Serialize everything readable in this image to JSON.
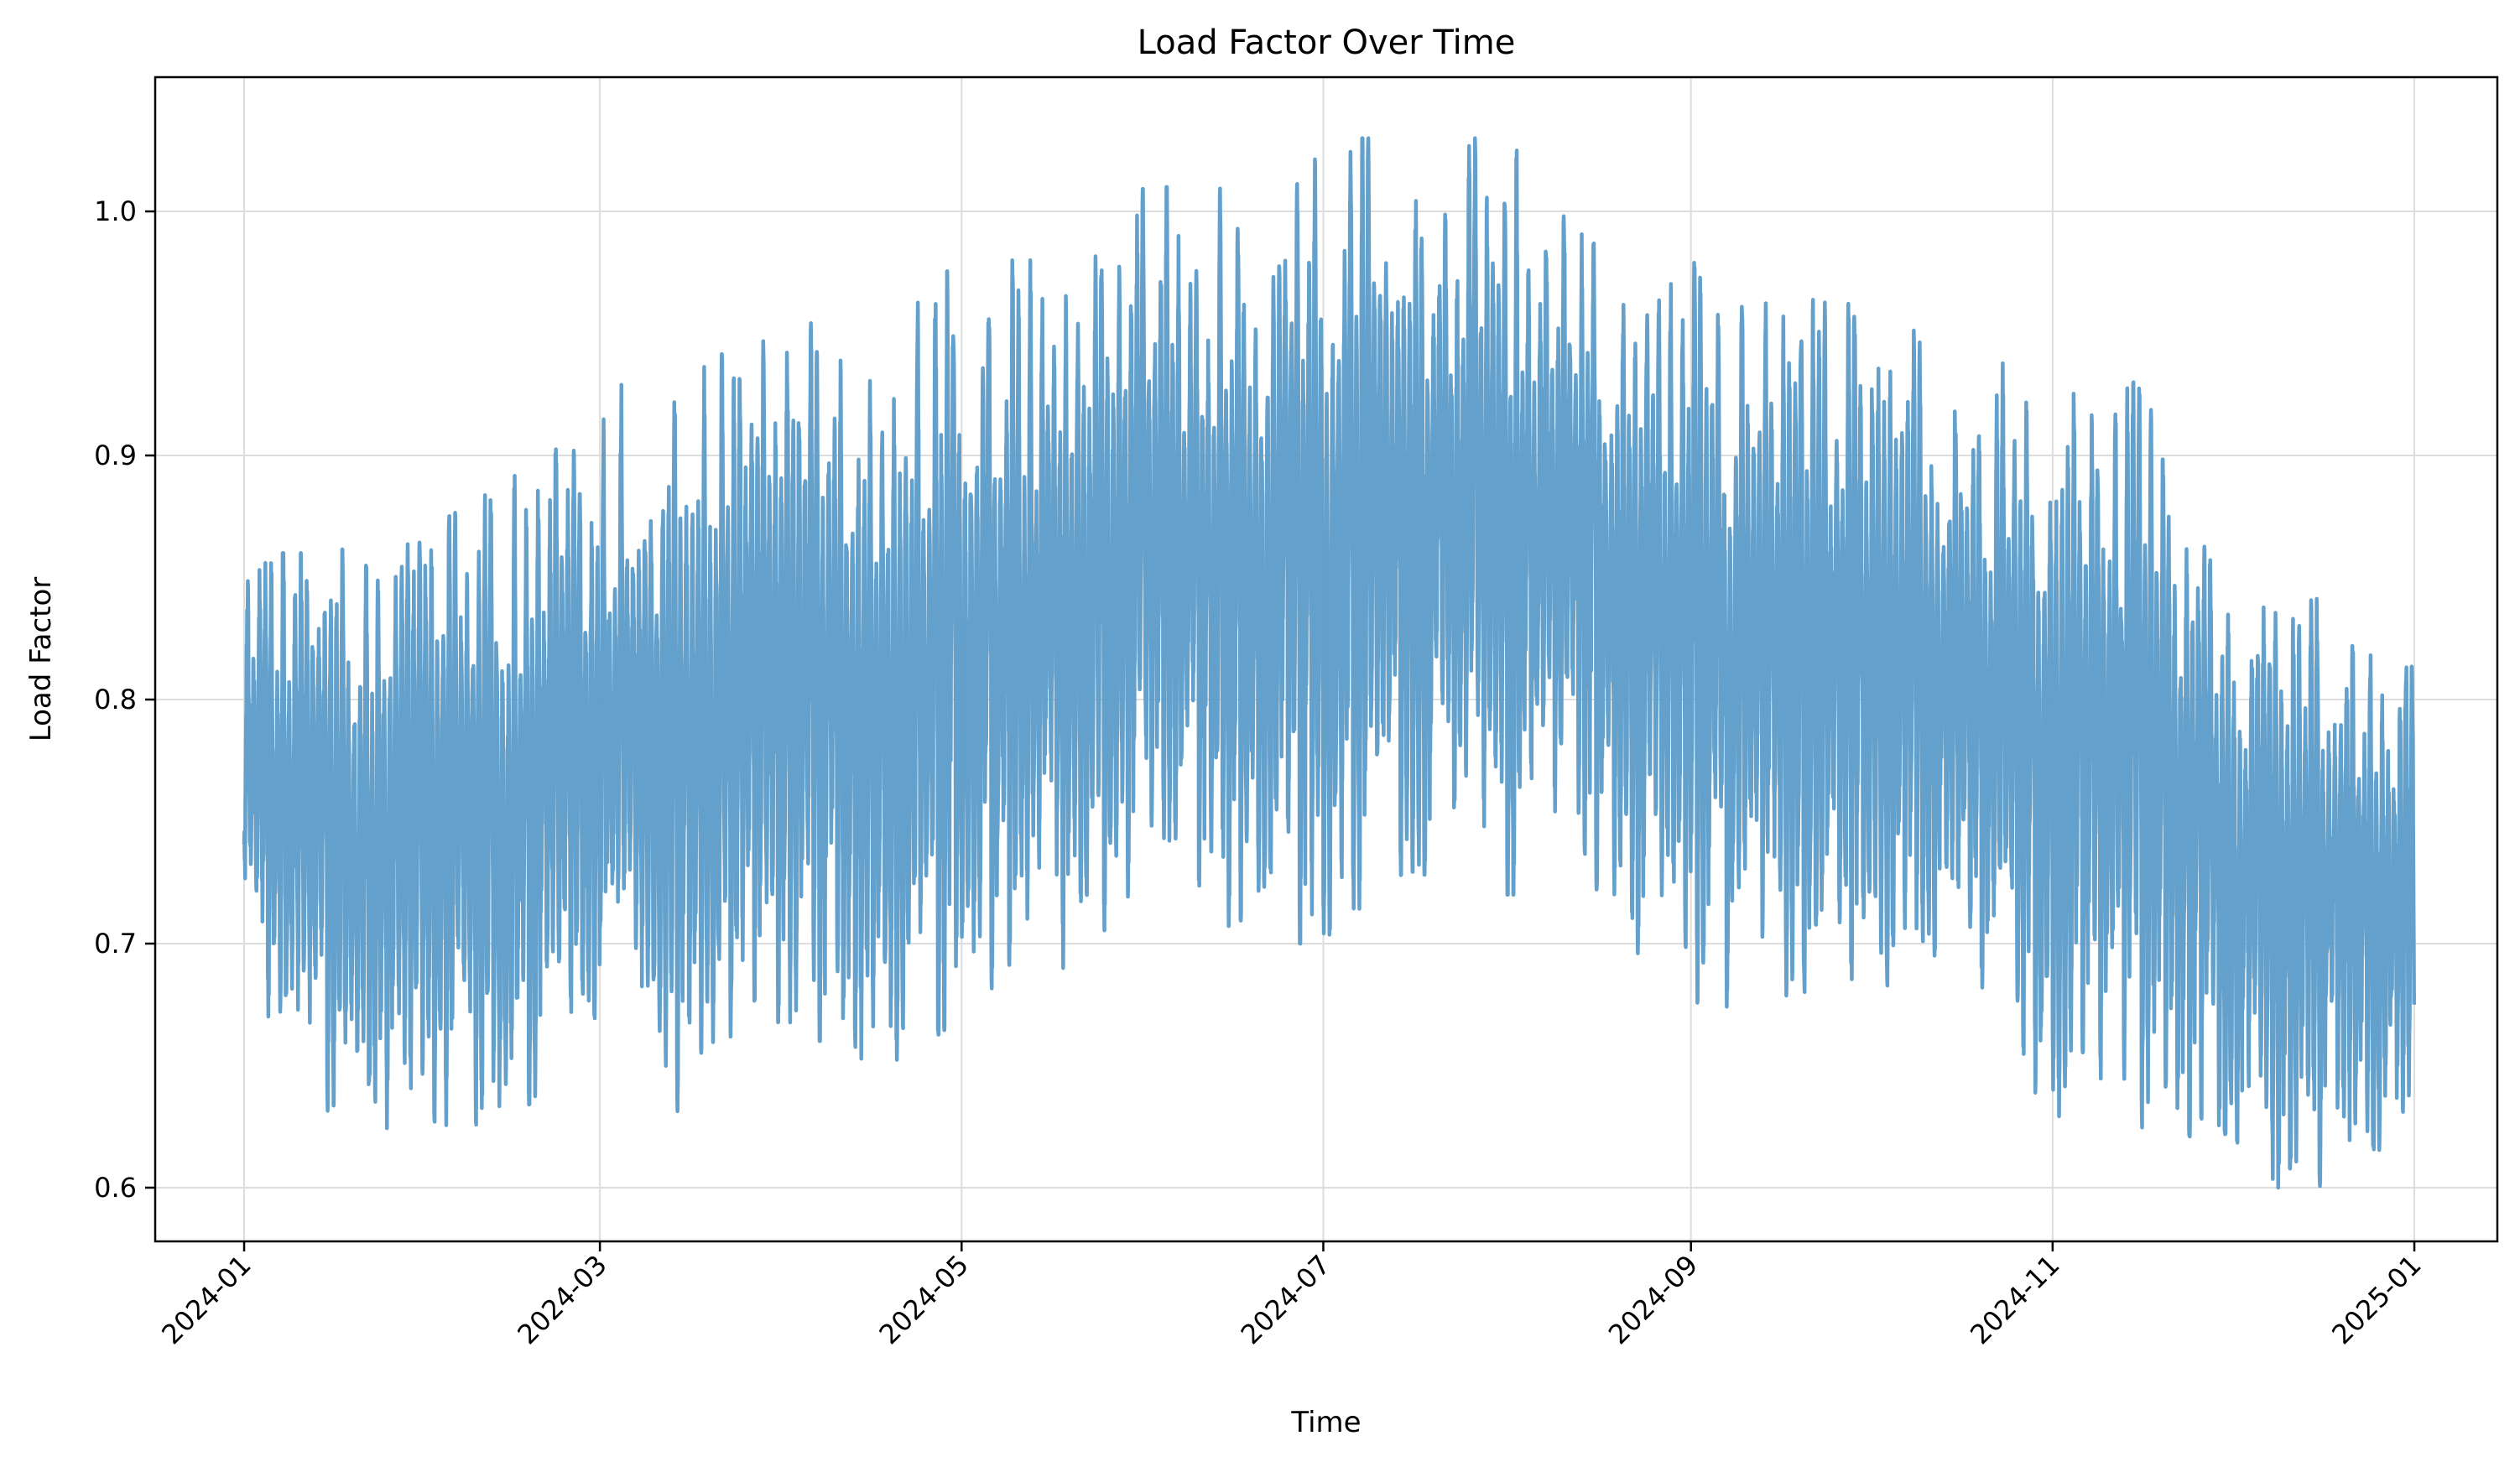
{
  "chart_data": {
    "type": "line",
    "title": "Load Factor Over Time",
    "xlabel": "Time",
    "ylabel": "Load Factor",
    "x_range": [
      "2023-12-17",
      "2025-01-15"
    ],
    "ylim": [
      0.578,
      1.055
    ],
    "grid": true,
    "legend": "none",
    "line_color": "#5b9bc8",
    "line_alpha": 0.95,
    "x_ticks": [
      "2024-01-01",
      "2024-03-01",
      "2024-05-01",
      "2024-07-01",
      "2024-09-01",
      "2024-11-01",
      "2025-01-01"
    ],
    "x_tick_labels": [
      "2024-01",
      "2024-03",
      "2024-05",
      "2024-07",
      "2024-09",
      "2024-11",
      "2025-01"
    ],
    "y_ticks": [
      0.6,
      0.7,
      0.8,
      0.9,
      1.0
    ],
    "y_tick_labels": [
      "0.6",
      "0.7",
      "0.8",
      "0.9",
      "1.0"
    ],
    "series": [
      {
        "sampling": "hourly",
        "x_start": "2024-01-01",
        "x_end": "2024-12-31",
        "daily_cycle": "values swing between a daily low and a daily high",
        "weekly_envelope": [
          {
            "week_of": "2024-01-01",
            "low": 0.69,
            "high": 0.86
          },
          {
            "week_of": "2024-01-15",
            "low": 0.62,
            "high": 0.86
          },
          {
            "week_of": "2024-02-01",
            "low": 0.62,
            "high": 0.87
          },
          {
            "week_of": "2024-02-15",
            "low": 0.63,
            "high": 0.89
          },
          {
            "week_of": "2024-03-01",
            "low": 0.65,
            "high": 0.93
          },
          {
            "week_of": "2024-03-15",
            "low": 0.63,
            "high": 0.93
          },
          {
            "week_of": "2024-04-01",
            "low": 0.67,
            "high": 0.96
          },
          {
            "week_of": "2024-04-15",
            "low": 0.64,
            "high": 0.95
          },
          {
            "week_of": "2024-05-01",
            "low": 0.67,
            "high": 0.98
          },
          {
            "week_of": "2024-05-15",
            "low": 0.68,
            "high": 0.98
          },
          {
            "week_of": "2024-06-01",
            "low": 0.72,
            "high": 1.01
          },
          {
            "week_of": "2024-06-15",
            "low": 0.7,
            "high": 1.01
          },
          {
            "week_of": "2024-07-01",
            "low": 0.7,
            "high": 1.03
          },
          {
            "week_of": "2024-07-15",
            "low": 0.73,
            "high": 1.03
          },
          {
            "week_of": "2024-08-01",
            "low": 0.72,
            "high": 1.03
          },
          {
            "week_of": "2024-08-15",
            "low": 0.72,
            "high": 1.0
          },
          {
            "week_of": "2024-09-01",
            "low": 0.66,
            "high": 0.98
          },
          {
            "week_of": "2024-09-15",
            "low": 0.68,
            "high": 0.97
          },
          {
            "week_of": "2024-10-01",
            "low": 0.67,
            "high": 0.96
          },
          {
            "week_of": "2024-10-15",
            "low": 0.67,
            "high": 0.95
          },
          {
            "week_of": "2024-11-01",
            "low": 0.63,
            "high": 0.93
          },
          {
            "week_of": "2024-11-15",
            "low": 0.62,
            "high": 0.93
          },
          {
            "week_of": "2024-12-01",
            "low": 0.6,
            "high": 0.86
          },
          {
            "week_of": "2024-12-15",
            "low": 0.6,
            "high": 0.85
          },
          {
            "week_of": "2024-12-31",
            "low": 0.61,
            "high": 0.83
          }
        ]
      }
    ]
  }
}
